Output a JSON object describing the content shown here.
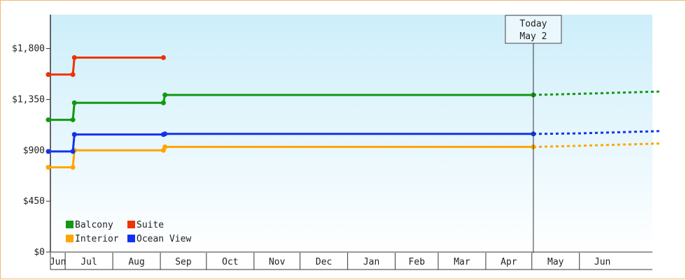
{
  "chart_data": {
    "type": "line",
    "step": true,
    "currency": "$",
    "ylim": [
      0,
      2100
    ],
    "yticks": [
      0,
      450,
      900,
      1350,
      1800
    ],
    "ytick_labels": [
      "$0",
      "$450",
      "$900",
      "$1,350",
      "$1,800"
    ],
    "x_months": [
      "Jun",
      "Jul",
      "Aug",
      "Sep",
      "Oct",
      "Nov",
      "Dec",
      "Jan",
      "Feb",
      "Mar",
      "Apr",
      "May",
      "Jun"
    ],
    "month_days": [
      30,
      31,
      31,
      30,
      31,
      30,
      31,
      31,
      28,
      31,
      30,
      31,
      30
    ],
    "first_month_start_day": 20,
    "today_marker": {
      "line1": "Today",
      "line2": "May 2",
      "date_offset_days": 316
    },
    "grid": false,
    "legend_position": "bottom-left",
    "series": [
      {
        "name": "Balcony",
        "color": "#119911",
        "points": [
          [
            0,
            1170
          ],
          [
            16,
            1170
          ],
          [
            17,
            1320
          ],
          [
            75,
            1320
          ],
          [
            76,
            1390
          ],
          [
            316,
            1390
          ]
        ],
        "forecast": [
          [
            316,
            1390
          ],
          [
            346,
            1400
          ],
          [
            398,
            1420
          ]
        ]
      },
      {
        "name": "Suite",
        "color": "#ee3300",
        "points": [
          [
            0,
            1570
          ],
          [
            16,
            1570
          ],
          [
            17,
            1720
          ],
          [
            75,
            1720
          ]
        ]
      },
      {
        "name": "Interior",
        "color": "#ffa500",
        "points": [
          [
            0,
            750
          ],
          [
            16,
            750
          ],
          [
            17,
            900
          ],
          [
            75,
            900
          ],
          [
            76,
            930
          ],
          [
            316,
            930
          ]
        ],
        "forecast": [
          [
            316,
            930
          ],
          [
            346,
            940
          ],
          [
            398,
            960
          ]
        ]
      },
      {
        "name": "Ocean View",
        "color": "#1133ee",
        "points": [
          [
            0,
            890
          ],
          [
            16,
            890
          ],
          [
            17,
            1040
          ],
          [
            75,
            1040
          ],
          [
            76,
            1045
          ],
          [
            316,
            1045
          ]
        ],
        "forecast": [
          [
            316,
            1045
          ],
          [
            346,
            1050
          ],
          [
            398,
            1070
          ]
        ]
      }
    ]
  }
}
